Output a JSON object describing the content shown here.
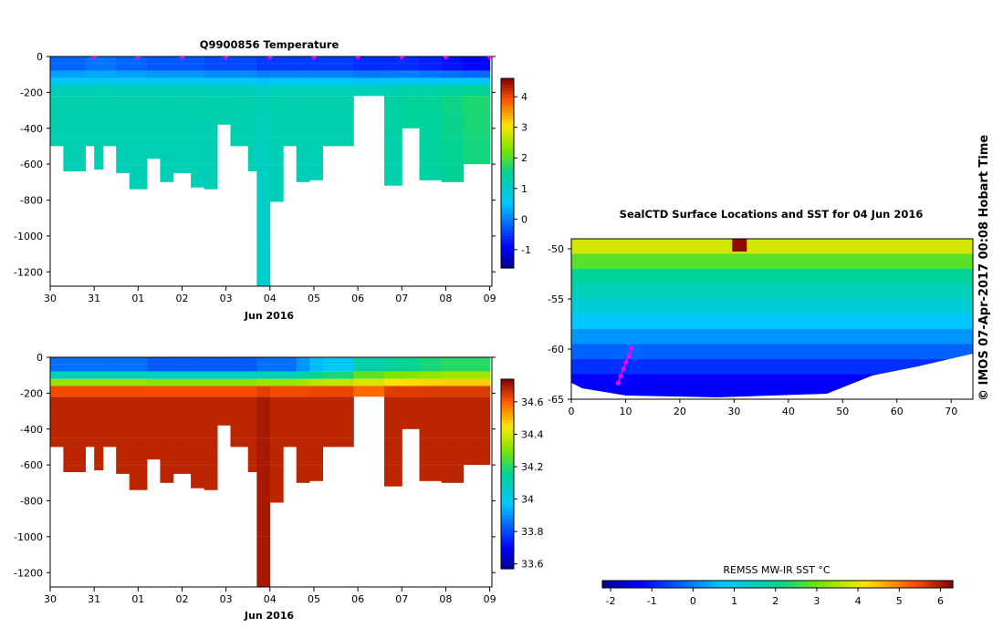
{
  "chart_data": [
    {
      "type": "heatmap",
      "title": "Q9900856  Temperature",
      "xlabel": "Jun 2016",
      "x_ticks": [
        "30",
        "31",
        "01",
        "02",
        "03",
        "04",
        "05",
        "06",
        "07",
        "08",
        "09"
      ],
      "x_range_days": [
        0,
        10.05
      ],
      "ylim": [
        -1280,
        0
      ],
      "y_ticks": [
        0,
        -200,
        -400,
        -600,
        -800,
        -1000,
        -1200
      ],
      "colorbar_ticks": [
        -1,
        0,
        1,
        2,
        3,
        4
      ],
      "colorbar_range": [
        -1.6,
        4.6
      ],
      "profile_markers": [
        1,
        2,
        3,
        4,
        5,
        6,
        7,
        8,
        9,
        10
      ],
      "profiles": [
        {
          "t": 0.0,
          "w": 0.3,
          "depth": 500,
          "surface": -0.2,
          "deep": 1.3
        },
        {
          "t": 0.3,
          "w": 0.5,
          "depth": 640,
          "surface": -0.2,
          "deep": 1.3
        },
        {
          "t": 0.8,
          "w": 0.2,
          "depth": 500,
          "surface": -0.1,
          "deep": 1.3
        },
        {
          "t": 1.0,
          "w": 0.2,
          "depth": 630,
          "surface": -0.1,
          "deep": 1.3
        },
        {
          "t": 1.2,
          "w": 0.3,
          "depth": 500,
          "surface": -0.1,
          "deep": 1.3
        },
        {
          "t": 1.5,
          "w": 0.3,
          "depth": 650,
          "surface": -0.2,
          "deep": 1.3
        },
        {
          "t": 1.8,
          "w": 0.4,
          "depth": 740,
          "surface": -0.2,
          "deep": 1.3
        },
        {
          "t": 2.2,
          "w": 0.3,
          "depth": 570,
          "surface": -0.3,
          "deep": 1.3
        },
        {
          "t": 2.5,
          "w": 0.3,
          "depth": 700,
          "surface": -0.3,
          "deep": 1.3
        },
        {
          "t": 2.8,
          "w": 0.4,
          "depth": 650,
          "surface": -0.3,
          "deep": 1.3
        },
        {
          "t": 3.2,
          "w": 0.3,
          "depth": 730,
          "surface": -0.3,
          "deep": 1.3
        },
        {
          "t": 3.5,
          "w": 0.3,
          "depth": 740,
          "surface": -0.4,
          "deep": 1.3
        },
        {
          "t": 3.8,
          "w": 0.3,
          "depth": 380,
          "surface": -0.4,
          "deep": 1.3
        },
        {
          "t": 4.1,
          "w": 0.4,
          "depth": 500,
          "surface": -0.4,
          "deep": 1.3
        },
        {
          "t": 4.5,
          "w": 0.2,
          "depth": 640,
          "surface": -0.4,
          "deep": 1.3
        },
        {
          "t": 4.7,
          "w": 0.3,
          "depth": 1280,
          "surface": -0.5,
          "deep": 1.2
        },
        {
          "t": 5.0,
          "w": 0.3,
          "depth": 810,
          "surface": -0.5,
          "deep": 1.3
        },
        {
          "t": 5.3,
          "w": 0.3,
          "depth": 500,
          "surface": -0.5,
          "deep": 1.3
        },
        {
          "t": 5.6,
          "w": 0.3,
          "depth": 700,
          "surface": -0.5,
          "deep": 1.3
        },
        {
          "t": 5.9,
          "w": 0.3,
          "depth": 690,
          "surface": -0.5,
          "deep": 1.3
        },
        {
          "t": 6.2,
          "w": 0.7,
          "depth": 500,
          "surface": -0.5,
          "deep": 1.3
        },
        {
          "t": 6.9,
          "w": 0.7,
          "depth": 220,
          "surface": -0.6,
          "deep": 1.3
        },
        {
          "t": 7.6,
          "w": 0.4,
          "depth": 720,
          "surface": -0.6,
          "deep": 1.4
        },
        {
          "t": 8.0,
          "w": 0.4,
          "depth": 400,
          "surface": -0.6,
          "deep": 1.5
        },
        {
          "t": 8.4,
          "w": 0.5,
          "depth": 690,
          "surface": -0.7,
          "deep": 1.5
        },
        {
          "t": 8.9,
          "w": 0.5,
          "depth": 700,
          "surface": -0.8,
          "deep": 1.6
        },
        {
          "t": 9.4,
          "w": 0.6,
          "depth": 600,
          "surface": -0.9,
          "deep": 1.7
        }
      ]
    },
    {
      "type": "heatmap",
      "title": "",
      "xlabel": "Jun 2016",
      "x_ticks": [
        "30",
        "31",
        "01",
        "02",
        "03",
        "04",
        "05",
        "06",
        "07",
        "08",
        "09"
      ],
      "x_range_days": [
        0,
        10.05
      ],
      "ylim": [
        -1280,
        0
      ],
      "y_ticks": [
        0,
        -200,
        -400,
        -600,
        -800,
        -1000,
        -1200
      ],
      "colorbar_ticks": [
        33.6,
        33.8,
        34,
        34.2,
        34.4,
        34.6
      ],
      "colorbar_labels": [
        "33.6",
        "33.8",
        "34",
        "34.2",
        "34.4",
        "34.6"
      ],
      "colorbar_range": [
        33.57,
        34.74
      ],
      "profiles": [
        {
          "t": 0.0,
          "w": 0.3,
          "depth": 500,
          "surface": 33.85,
          "deep": 34.68
        },
        {
          "t": 0.3,
          "w": 0.5,
          "depth": 640,
          "surface": 33.85,
          "deep": 34.68
        },
        {
          "t": 0.8,
          "w": 0.2,
          "depth": 500,
          "surface": 33.85,
          "deep": 34.68
        },
        {
          "t": 1.0,
          "w": 0.2,
          "depth": 630,
          "surface": 33.85,
          "deep": 34.68
        },
        {
          "t": 1.2,
          "w": 0.3,
          "depth": 500,
          "surface": 33.85,
          "deep": 34.68
        },
        {
          "t": 1.5,
          "w": 0.3,
          "depth": 650,
          "surface": 33.85,
          "deep": 34.68
        },
        {
          "t": 1.8,
          "w": 0.4,
          "depth": 740,
          "surface": 33.85,
          "deep": 34.68
        },
        {
          "t": 2.2,
          "w": 0.3,
          "depth": 570,
          "surface": 33.82,
          "deep": 34.68
        },
        {
          "t": 2.5,
          "w": 0.3,
          "depth": 700,
          "surface": 33.82,
          "deep": 34.68
        },
        {
          "t": 2.8,
          "w": 0.4,
          "depth": 650,
          "surface": 33.82,
          "deep": 34.68
        },
        {
          "t": 3.2,
          "w": 0.3,
          "depth": 730,
          "surface": 33.82,
          "deep": 34.68
        },
        {
          "t": 3.5,
          "w": 0.3,
          "depth": 740,
          "surface": 33.82,
          "deep": 34.68
        },
        {
          "t": 3.8,
          "w": 0.3,
          "depth": 380,
          "surface": 33.82,
          "deep": 34.68
        },
        {
          "t": 4.1,
          "w": 0.4,
          "depth": 500,
          "surface": 33.82,
          "deep": 34.68
        },
        {
          "t": 4.5,
          "w": 0.2,
          "depth": 640,
          "surface": 33.82,
          "deep": 34.68
        },
        {
          "t": 4.7,
          "w": 0.3,
          "depth": 1280,
          "surface": 33.85,
          "deep": 34.7
        },
        {
          "t": 5.0,
          "w": 0.3,
          "depth": 810,
          "surface": 33.85,
          "deep": 34.68
        },
        {
          "t": 5.3,
          "w": 0.3,
          "depth": 500,
          "surface": 33.85,
          "deep": 34.68
        },
        {
          "t": 5.6,
          "w": 0.3,
          "depth": 700,
          "surface": 33.9,
          "deep": 34.68
        },
        {
          "t": 5.9,
          "w": 0.3,
          "depth": 690,
          "surface": 33.95,
          "deep": 34.68
        },
        {
          "t": 6.2,
          "w": 0.7,
          "depth": 500,
          "surface": 33.98,
          "deep": 34.68
        },
        {
          "t": 6.9,
          "w": 0.7,
          "depth": 220,
          "surface": 34.12,
          "deep": 34.62
        },
        {
          "t": 7.6,
          "w": 0.4,
          "depth": 720,
          "surface": 34.15,
          "deep": 34.68
        },
        {
          "t": 8.0,
          "w": 0.4,
          "depth": 400,
          "surface": 34.16,
          "deep": 34.68
        },
        {
          "t": 8.4,
          "w": 0.5,
          "depth": 690,
          "surface": 34.18,
          "deep": 34.68
        },
        {
          "t": 8.9,
          "w": 0.5,
          "depth": 700,
          "surface": 34.2,
          "deep": 34.68
        },
        {
          "t": 9.4,
          "w": 0.6,
          "depth": 600,
          "surface": 34.2,
          "deep": 34.68
        }
      ]
    },
    {
      "type": "heatmap",
      "title": "SealCTD Surface Locations and SST for 04 Jun 2016",
      "x_ticks": [
        0,
        10,
        20,
        30,
        40,
        50,
        60,
        70
      ],
      "y_ticks": [
        -50,
        -55,
        -60,
        -65
      ],
      "xlim": [
        0,
        74
      ],
      "ylim": [
        -65,
        -49
      ],
      "colorbar_label": "REMSS MW-IR SST °C",
      "colorbar_ticks": [
        -2,
        -1,
        0,
        1,
        2,
        3,
        4,
        5,
        6
      ],
      "colorbar_range": [
        -2.2,
        6.3
      ],
      "sst_bands": [
        {
          "lat_top": -49.0,
          "lat_bot": -50.5,
          "sst": 3.8
        },
        {
          "lat_top": -50.5,
          "lat_bot": -52.0,
          "sst": 2.8
        },
        {
          "lat_top": -52.0,
          "lat_bot": -53.5,
          "sst": 2.0
        },
        {
          "lat_top": -53.5,
          "lat_bot": -55.0,
          "sst": 1.6
        },
        {
          "lat_top": -55.0,
          "lat_bot": -56.5,
          "sst": 1.2
        },
        {
          "lat_top": -56.5,
          "lat_bot": -58.0,
          "sst": 0.7
        },
        {
          "lat_top": -58.0,
          "lat_bot": -59.5,
          "sst": 0.2
        },
        {
          "lat_top": -59.5,
          "lat_bot": -61.0,
          "sst": -0.3
        },
        {
          "lat_top": -61.0,
          "lat_bot": -62.5,
          "sst": -0.8
        },
        {
          "lat_top": -62.5,
          "lat_bot": -65.0,
          "sst": -1.3
        }
      ],
      "hotspot": {
        "lon": 31,
        "lat": -49.7,
        "sst": 6.2
      },
      "track": [
        [
          8.6,
          -63.4
        ],
        [
          9.1,
          -62.7
        ],
        [
          9.6,
          -62.0
        ],
        [
          10.1,
          -61.3
        ],
        [
          10.6,
          -60.7
        ],
        [
          11.1,
          -59.9
        ]
      ]
    }
  ],
  "stamp": "©  IMOS 07-Apr-2017 00:08 Hobart Time"
}
